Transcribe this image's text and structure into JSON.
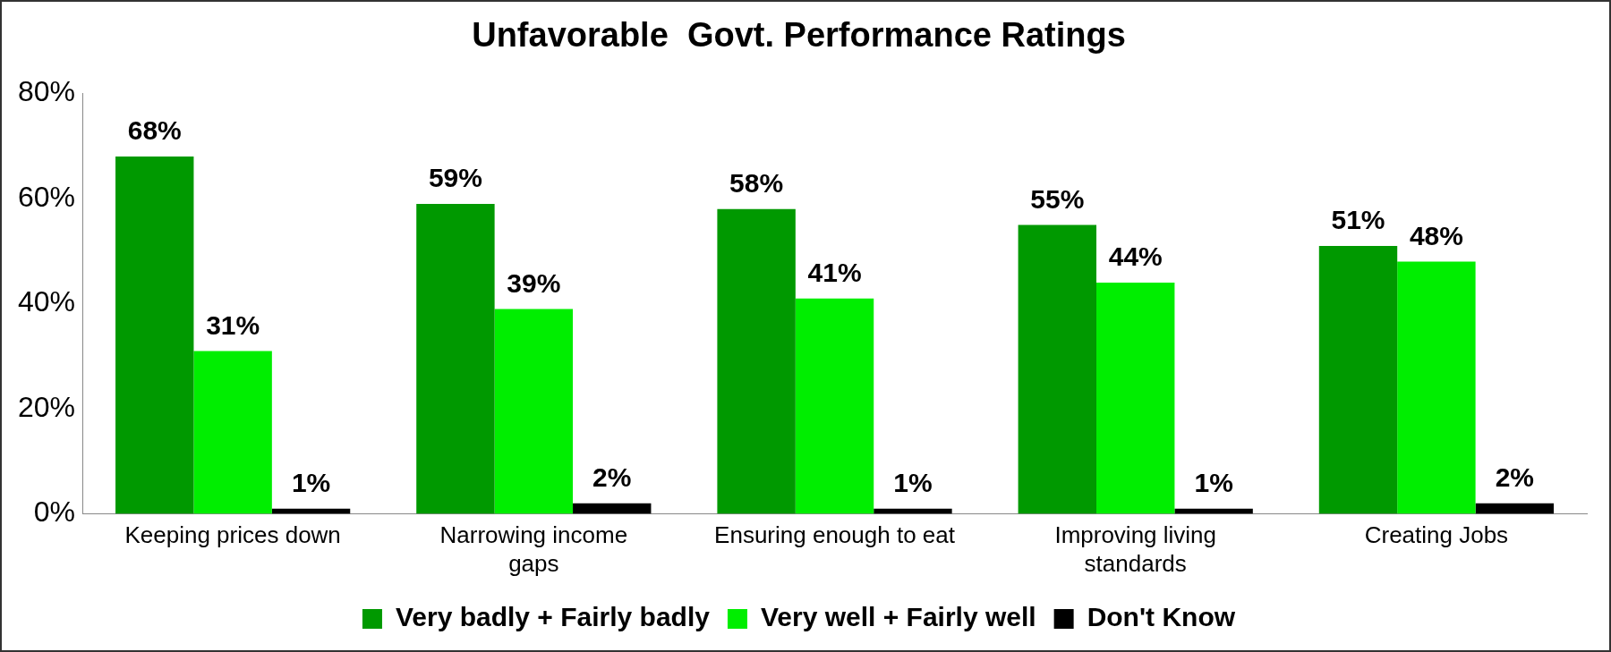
{
  "chart_data": {
    "type": "bar",
    "title": "Unfavorable  Govt. Performance Ratings",
    "categories": [
      "Keeping prices down",
      "Narrowing income gaps",
      "Ensuring enough to eat",
      "Improving living standards",
      "Creating Jobs"
    ],
    "series": [
      {
        "name": "Very badly + Fairly badly",
        "color": "#009900",
        "values": [
          68,
          59,
          58,
          55,
          51
        ],
        "value_labels": [
          "68%",
          "59%",
          "58%",
          "55%",
          "51%"
        ]
      },
      {
        "name": "Very well + Fairly well",
        "color": "#00ee00",
        "values": [
          31,
          39,
          41,
          44,
          48
        ],
        "value_labels": [
          "31%",
          "39%",
          "41%",
          "44%",
          "48%"
        ]
      },
      {
        "name": "Don't Know",
        "color": "#000000",
        "values": [
          1,
          2,
          1,
          1,
          2
        ],
        "value_labels": [
          "1%",
          "2%",
          "1%",
          "1%",
          "2%"
        ]
      }
    ],
    "ylim": [
      0,
      80
    ],
    "yticks": [
      {
        "value": 0,
        "label": "0%"
      },
      {
        "value": 20,
        "label": "20%"
      },
      {
        "value": 40,
        "label": "40%"
      },
      {
        "value": 60,
        "label": "60%"
      },
      {
        "value": 80,
        "label": "80%"
      }
    ],
    "grid": false,
    "legend": "bottom"
  }
}
